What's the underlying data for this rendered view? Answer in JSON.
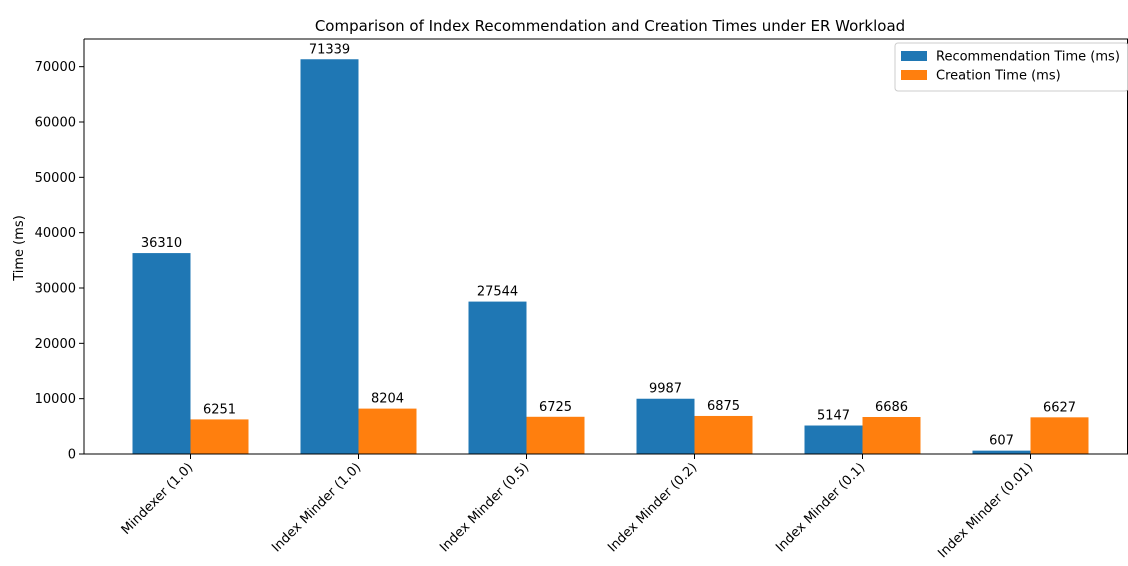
{
  "chart_data": {
    "type": "bar",
    "title": "Comparison of Index Recommendation and Creation Times under ER Workload",
    "xlabel": "",
    "ylabel": "Time (ms)",
    "categories": [
      "Mindexer (1.0)",
      "Index Minder (1.0)",
      "Index Minder (0.5)",
      "Index Minder (0.2)",
      "Index Minder (0.1)",
      "Index Minder (0.01)"
    ],
    "series": [
      {
        "name": "Recommendation Time (ms)",
        "color": "#1f77b4",
        "values": [
          36310,
          71339,
          27544,
          9987,
          5147,
          607
        ]
      },
      {
        "name": "Creation Time (ms)",
        "color": "#ff7f0e",
        "values": [
          6251,
          8204,
          6725,
          6875,
          6686,
          6627
        ]
      }
    ],
    "ylim": [
      0,
      75000
    ],
    "yticks": [
      0,
      10000,
      20000,
      30000,
      40000,
      50000,
      60000,
      70000
    ],
    "grid": false,
    "legend_position": "top-right",
    "data_labels": true
  }
}
